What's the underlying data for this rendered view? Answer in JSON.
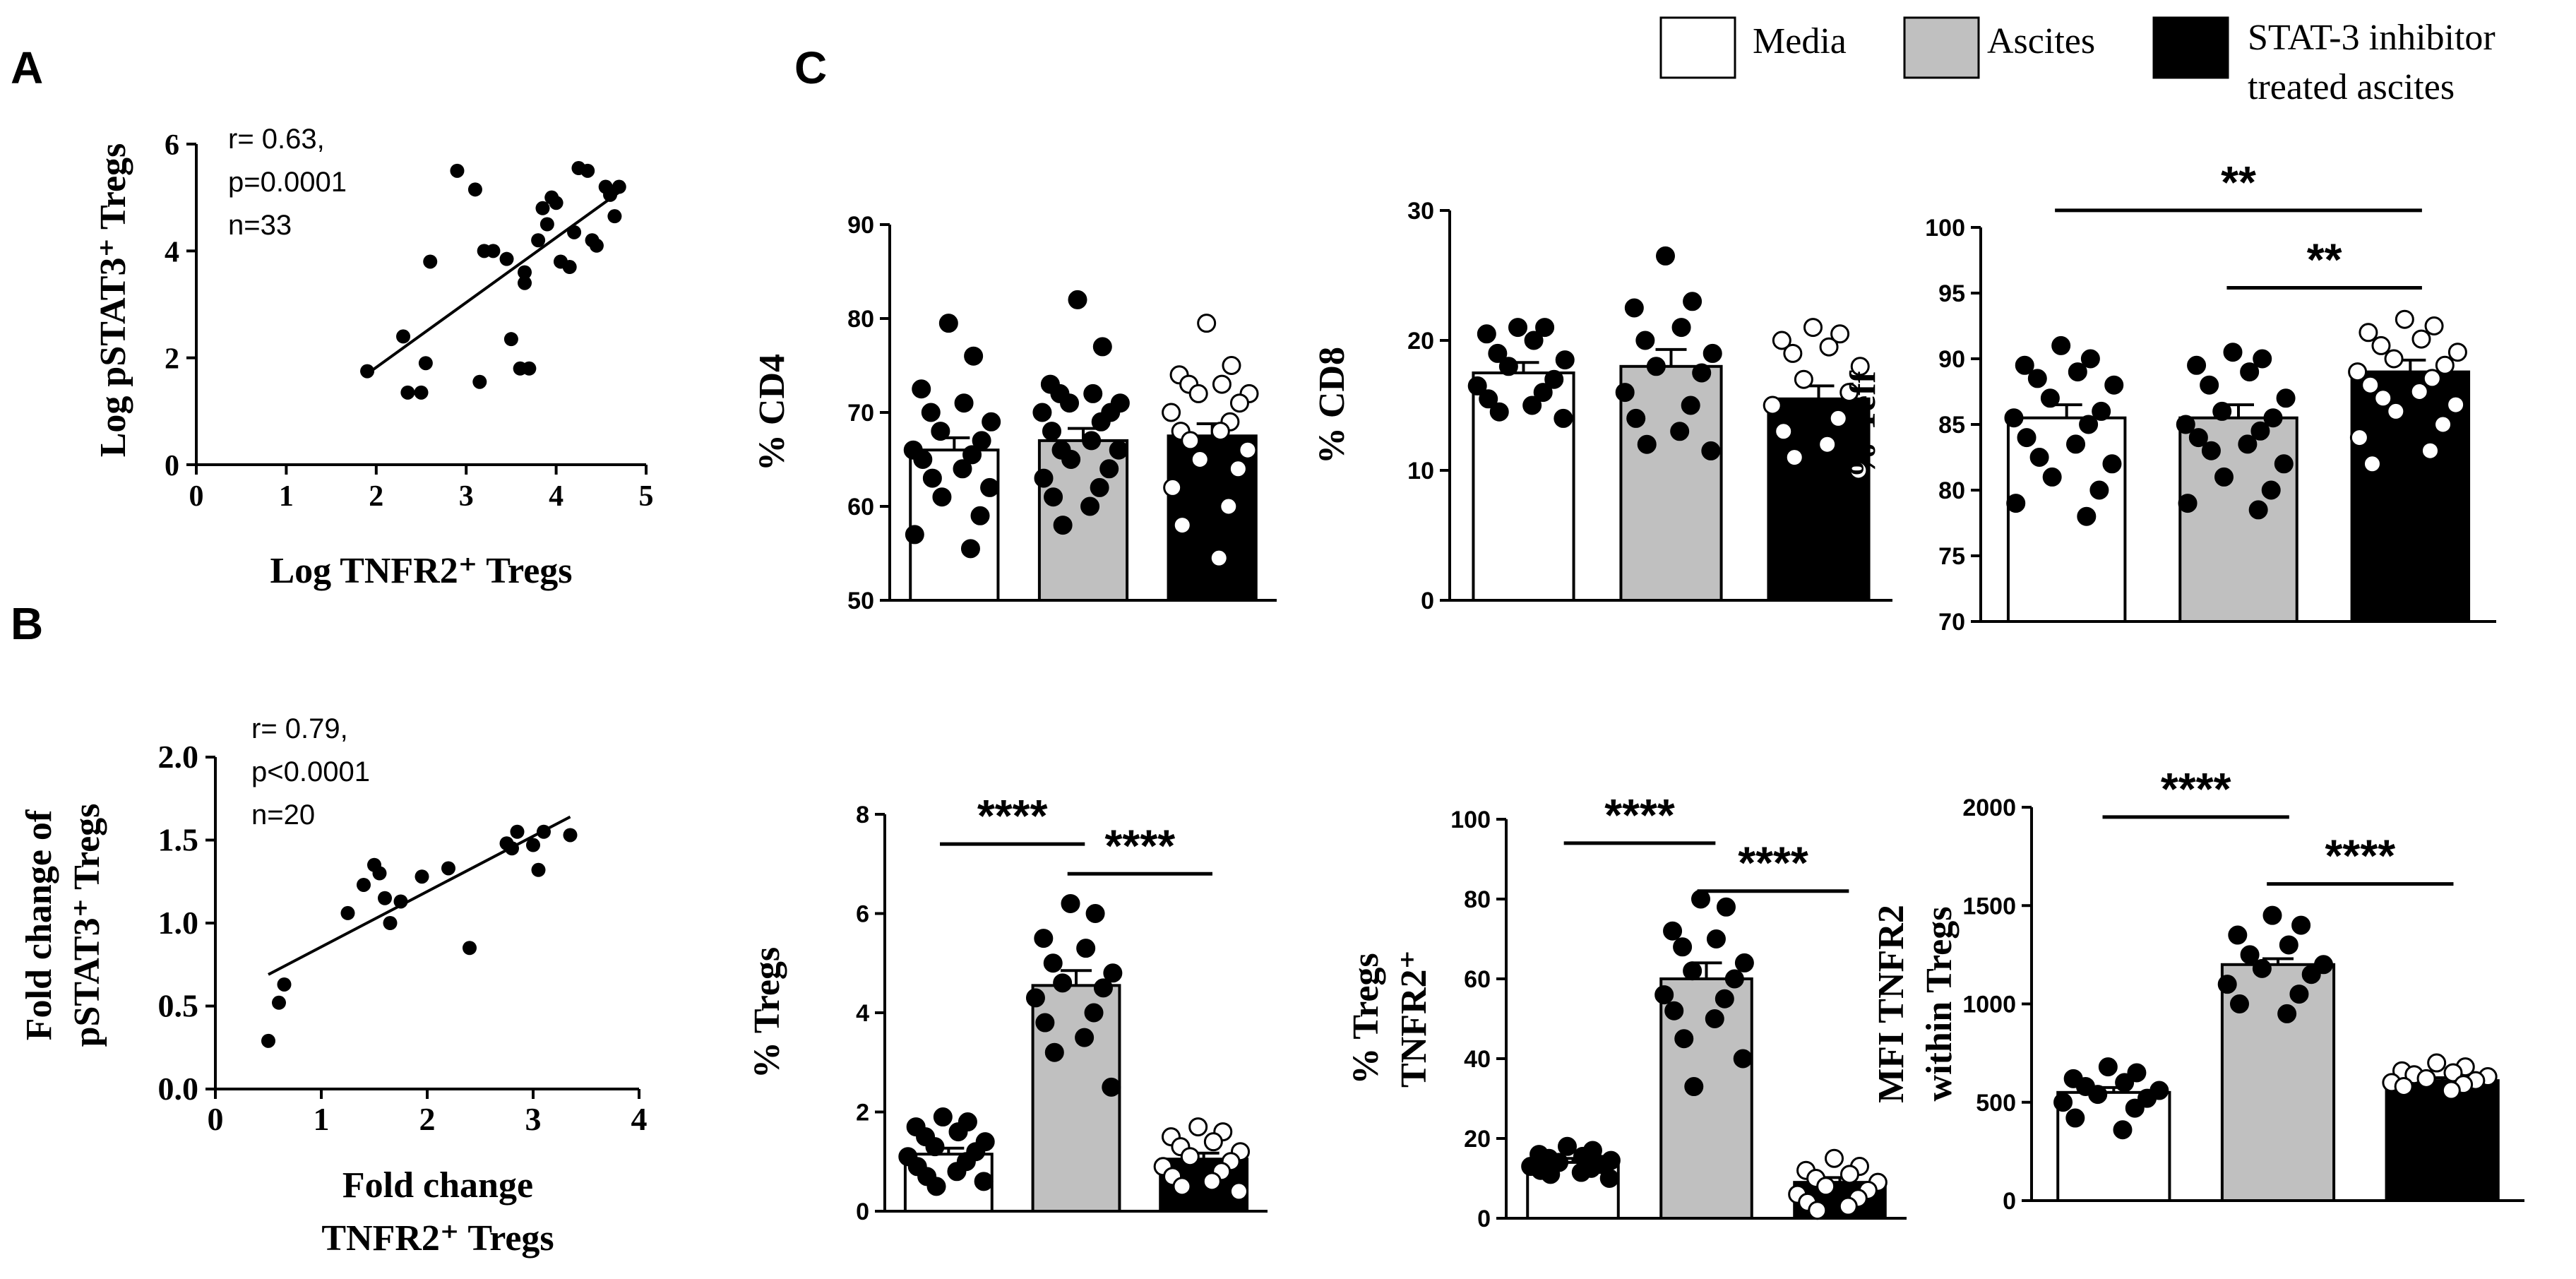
{
  "legend": {
    "entries": [
      {
        "label": "Media",
        "color": "#ffffff"
      },
      {
        "label": "Ascites",
        "color": "#c0c0c0"
      },
      {
        "label_lines": [
          "STAT-3 inhibitor",
          "treated ascites"
        ],
        "color": "#000000"
      }
    ]
  },
  "chart_data": [
    {
      "id": "A",
      "panel_label": "A",
      "type": "scatter",
      "xlabel": "Log TNFR2⁺ Tregs",
      "ylabel": "Log pSTAT3⁺ Tregs",
      "xlim": [
        0,
        5
      ],
      "ylim": [
        0,
        6
      ],
      "xticks": [
        0,
        1,
        2,
        3,
        4,
        5
      ],
      "yticks": [
        0,
        2,
        4,
        6
      ],
      "stats": [
        "r= 0.63,",
        "p=0.0001",
        "n=33"
      ],
      "fit": {
        "x": [
          1.9,
          4.7
        ],
        "y": [
          1.7,
          5.1
        ]
      },
      "points": [
        [
          1.9,
          1.75
        ],
        [
          2.3,
          2.4
        ],
        [
          2.35,
          1.35
        ],
        [
          2.5,
          1.35
        ],
        [
          2.55,
          1.9
        ],
        [
          2.6,
          3.8
        ],
        [
          2.9,
          5.5
        ],
        [
          3.1,
          5.15
        ],
        [
          3.15,
          1.55
        ],
        [
          3.2,
          4.0
        ],
        [
          3.3,
          4.0
        ],
        [
          3.45,
          3.85
        ],
        [
          3.5,
          2.35
        ],
        [
          3.6,
          1.8
        ],
        [
          3.65,
          3.4
        ],
        [
          3.65,
          3.6
        ],
        [
          3.7,
          1.8
        ],
        [
          3.8,
          4.2
        ],
        [
          3.85,
          4.8
        ],
        [
          3.9,
          4.5
        ],
        [
          3.95,
          5.0
        ],
        [
          4.0,
          4.9
        ],
        [
          4.05,
          3.8
        ],
        [
          4.15,
          3.7
        ],
        [
          4.2,
          4.35
        ],
        [
          4.25,
          5.55
        ],
        [
          4.35,
          5.5
        ],
        [
          4.4,
          4.2
        ],
        [
          4.45,
          4.1
        ],
        [
          4.55,
          5.2
        ],
        [
          4.6,
          5.05
        ],
        [
          4.65,
          4.65
        ],
        [
          4.7,
          5.2
        ]
      ]
    },
    {
      "id": "B",
      "panel_label": "B",
      "type": "scatter",
      "xlabel_lines": [
        "Fold change",
        "TNFR2⁺ Tregs"
      ],
      "ylabel_lines": [
        "Fold change of",
        "pSTAT3⁺ Tregs"
      ],
      "xlim": [
        0,
        4
      ],
      "ylim": [
        0,
        2
      ],
      "xticks": [
        0,
        1,
        2,
        3,
        4
      ],
      "xtick_labels": [
        "0",
        "1",
        "2",
        "3",
        "4"
      ],
      "yticks": [
        0,
        0.5,
        1.0,
        1.5,
        2.0
      ],
      "ytick_labels": [
        "0.0",
        "0.5",
        "1.0",
        "1.5",
        "2.0"
      ],
      "stats": [
        "r= 0.79,",
        "p<0.0001",
        "n=20"
      ],
      "fit": {
        "x": [
          0.5,
          3.35
        ],
        "y": [
          0.69,
          1.64
        ]
      },
      "points": [
        [
          0.5,
          0.29
        ],
        [
          0.6,
          0.52
        ],
        [
          0.65,
          0.63
        ],
        [
          1.25,
          1.06
        ],
        [
          1.4,
          1.23
        ],
        [
          1.5,
          1.35
        ],
        [
          1.55,
          1.3
        ],
        [
          1.6,
          1.15
        ],
        [
          1.65,
          1.0
        ],
        [
          1.75,
          1.13
        ],
        [
          1.95,
          1.28
        ],
        [
          2.2,
          1.33
        ],
        [
          2.4,
          0.85
        ],
        [
          2.75,
          1.48
        ],
        [
          2.8,
          1.45
        ],
        [
          2.85,
          1.55
        ],
        [
          3.0,
          1.47
        ],
        [
          3.05,
          1.32
        ],
        [
          3.1,
          1.55
        ],
        [
          3.35,
          1.53
        ]
      ]
    },
    {
      "id": "CD4",
      "panel_label": "C",
      "type": "bar",
      "ylabel": "% CD4",
      "categories": [
        "Media",
        "Ascites",
        "STAT-3 inhibitor treated ascites"
      ],
      "values": [
        66,
        67,
        67.5
      ],
      "errors": [
        1.3,
        1.3,
        1.3
      ],
      "ylim": [
        50,
        90
      ],
      "yticks": [
        50,
        60,
        70,
        80,
        90
      ],
      "significance": [],
      "points": [
        [
          79.5,
          76,
          72.5,
          71,
          70,
          69,
          68,
          67,
          66,
          65.5,
          65,
          64,
          63,
          62,
          61,
          59,
          57,
          55.5
        ],
        [
          82,
          77,
          73,
          72,
          72,
          71,
          71,
          70,
          70,
          69,
          68,
          67,
          66,
          66,
          65,
          64,
          63,
          62,
          61,
          60,
          58
        ],
        [
          79.5,
          75,
          74,
          73,
          73,
          72,
          72,
          71,
          70,
          69,
          68,
          68,
          67,
          66,
          65,
          64,
          62,
          60,
          58,
          54.5
        ]
      ]
    },
    {
      "id": "CD8",
      "type": "bar",
      "ylabel": "% CD8",
      "categories": [
        "Media",
        "Ascites",
        "STAT-3 inhibitor treated ascites"
      ],
      "values": [
        17.5,
        18,
        15.5
      ],
      "errors": [
        0.8,
        1.3,
        1.0
      ],
      "ylim": [
        0,
        30
      ],
      "yticks": [
        0,
        10,
        20,
        30
      ],
      "significance": [],
      "points": [
        [
          21,
          21,
          20.5,
          20,
          19,
          18.5,
          18,
          17,
          16.5,
          16,
          15.5,
          15,
          14.5,
          14
        ],
        [
          26.5,
          23,
          22.5,
          21,
          20,
          19,
          18,
          17.5,
          16,
          15,
          14,
          13,
          12,
          11.5
        ],
        [
          21,
          20.5,
          20,
          19.5,
          19,
          18,
          17,
          16,
          15,
          14,
          13,
          12,
          11,
          10
        ]
      ]
    },
    {
      "id": "Teff",
      "type": "bar",
      "ylabel": "% Teff",
      "categories": [
        "Media",
        "Ascites",
        "STAT-3 inhibitor treated ascites"
      ],
      "values": [
        85.5,
        85.5,
        89
      ],
      "errors": [
        1.0,
        1.0,
        0.9
      ],
      "ylim": [
        70,
        100
      ],
      "yticks": [
        70,
        75,
        80,
        85,
        90,
        95,
        100
      ],
      "significance": [
        {
          "from": 0,
          "to": 2,
          "label": "**",
          "y": 101.3
        },
        {
          "from": 1,
          "to": 2,
          "label": "**",
          "y": 95.4
        }
      ],
      "points": [
        [
          91,
          90,
          89.5,
          89,
          88.5,
          88,
          87,
          86,
          85.5,
          85,
          84,
          83.5,
          82.5,
          82,
          81,
          80,
          79,
          78
        ],
        [
          90.5,
          90,
          89.5,
          89,
          88,
          87,
          86,
          85.5,
          85,
          84.5,
          84,
          83.5,
          83,
          82,
          81,
          80,
          79,
          78.5
        ],
        [
          93,
          92.5,
          92,
          91.5,
          91,
          90.5,
          90,
          89.5,
          89,
          88.5,
          88,
          87.5,
          87,
          86.5,
          86,
          85,
          84,
          83,
          82
        ]
      ]
    },
    {
      "id": "Tregs",
      "type": "bar",
      "ylabel": "% Tregs",
      "categories": [
        "Media",
        "Ascites",
        "STAT-3 inhibitor treated ascites"
      ],
      "values": [
        1.15,
        4.55,
        1.05
      ],
      "errors": [
        0.12,
        0.3,
        0.12
      ],
      "ylim": [
        0,
        8
      ],
      "yticks": [
        0,
        2,
        4,
        6,
        8
      ],
      "significance": [
        {
          "from": 0,
          "to": 1,
          "label": "****",
          "y": 7.4
        },
        {
          "from": 1,
          "to": 2,
          "label": "****",
          "y": 6.8
        }
      ],
      "points": [
        [
          1.9,
          1.8,
          1.7,
          1.6,
          1.5,
          1.4,
          1.3,
          1.2,
          1.1,
          1.0,
          0.9,
          0.8,
          0.7,
          0.6,
          0.5
        ],
        [
          6.2,
          6.0,
          5.5,
          5.3,
          5.0,
          4.8,
          4.6,
          4.5,
          4.3,
          4.0,
          3.8,
          3.5,
          3.2,
          2.5
        ],
        [
          1.7,
          1.6,
          1.5,
          1.4,
          1.3,
          1.2,
          1.1,
          1.0,
          0.9,
          0.8,
          0.7,
          0.6,
          0.5,
          0.4
        ]
      ]
    },
    {
      "id": "TNFR2",
      "type": "bar",
      "ylabel_lines": [
        "% Tregs",
        "TNFR2⁺"
      ],
      "categories": [
        "Media",
        "Ascites",
        "STAT-3 inhibitor treated ascites"
      ],
      "values": [
        14,
        60,
        9
      ],
      "errors": [
        1.0,
        4.0,
        1.2
      ],
      "ylim": [
        0,
        100
      ],
      "yticks": [
        0,
        20,
        40,
        60,
        80,
        100
      ],
      "significance": [
        {
          "from": 0,
          "to": 1,
          "label": "****",
          "y": 94
        },
        {
          "from": 1,
          "to": 2,
          "label": "****",
          "y": 82
        }
      ],
      "points": [
        [
          18,
          17,
          16,
          15.5,
          15,
          14.5,
          14,
          13.5,
          13,
          12.5,
          12,
          11.5,
          11,
          10
        ],
        [
          80,
          78,
          72,
          70,
          68,
          64,
          62,
          60,
          56,
          55,
          52,
          50,
          45,
          40,
          33
        ],
        [
          15,
          13,
          12,
          11,
          10,
          9,
          8,
          7,
          6,
          5,
          4,
          3,
          2
        ]
      ]
    },
    {
      "id": "MFI",
      "type": "bar",
      "ylabel_lines": [
        "MFI TNFR2",
        "within Tregs"
      ],
      "categories": [
        "Media",
        "Ascites",
        "STAT-3 inhibitor treated ascites"
      ],
      "values": [
        550,
        1200,
        610
      ],
      "errors": [
        25,
        30,
        15
      ],
      "ylim": [
        0,
        2000
      ],
      "yticks": [
        0,
        500,
        1000,
        1500,
        2000
      ],
      "significance": [
        {
          "from": 0,
          "to": 1,
          "label": "****",
          "y": 1950
        },
        {
          "from": 1,
          "to": 2,
          "label": "****",
          "y": 1610
        }
      ],
      "points": [
        [
          680,
          650,
          620,
          600,
          580,
          560,
          540,
          520,
          500,
          470,
          420,
          360
        ],
        [
          1450,
          1400,
          1350,
          1300,
          1250,
          1200,
          1180,
          1150,
          1100,
          1050,
          1000,
          950
        ],
        [
          700,
          680,
          660,
          650,
          640,
          630,
          620,
          610,
          600,
          590,
          580,
          560
        ]
      ]
    }
  ]
}
